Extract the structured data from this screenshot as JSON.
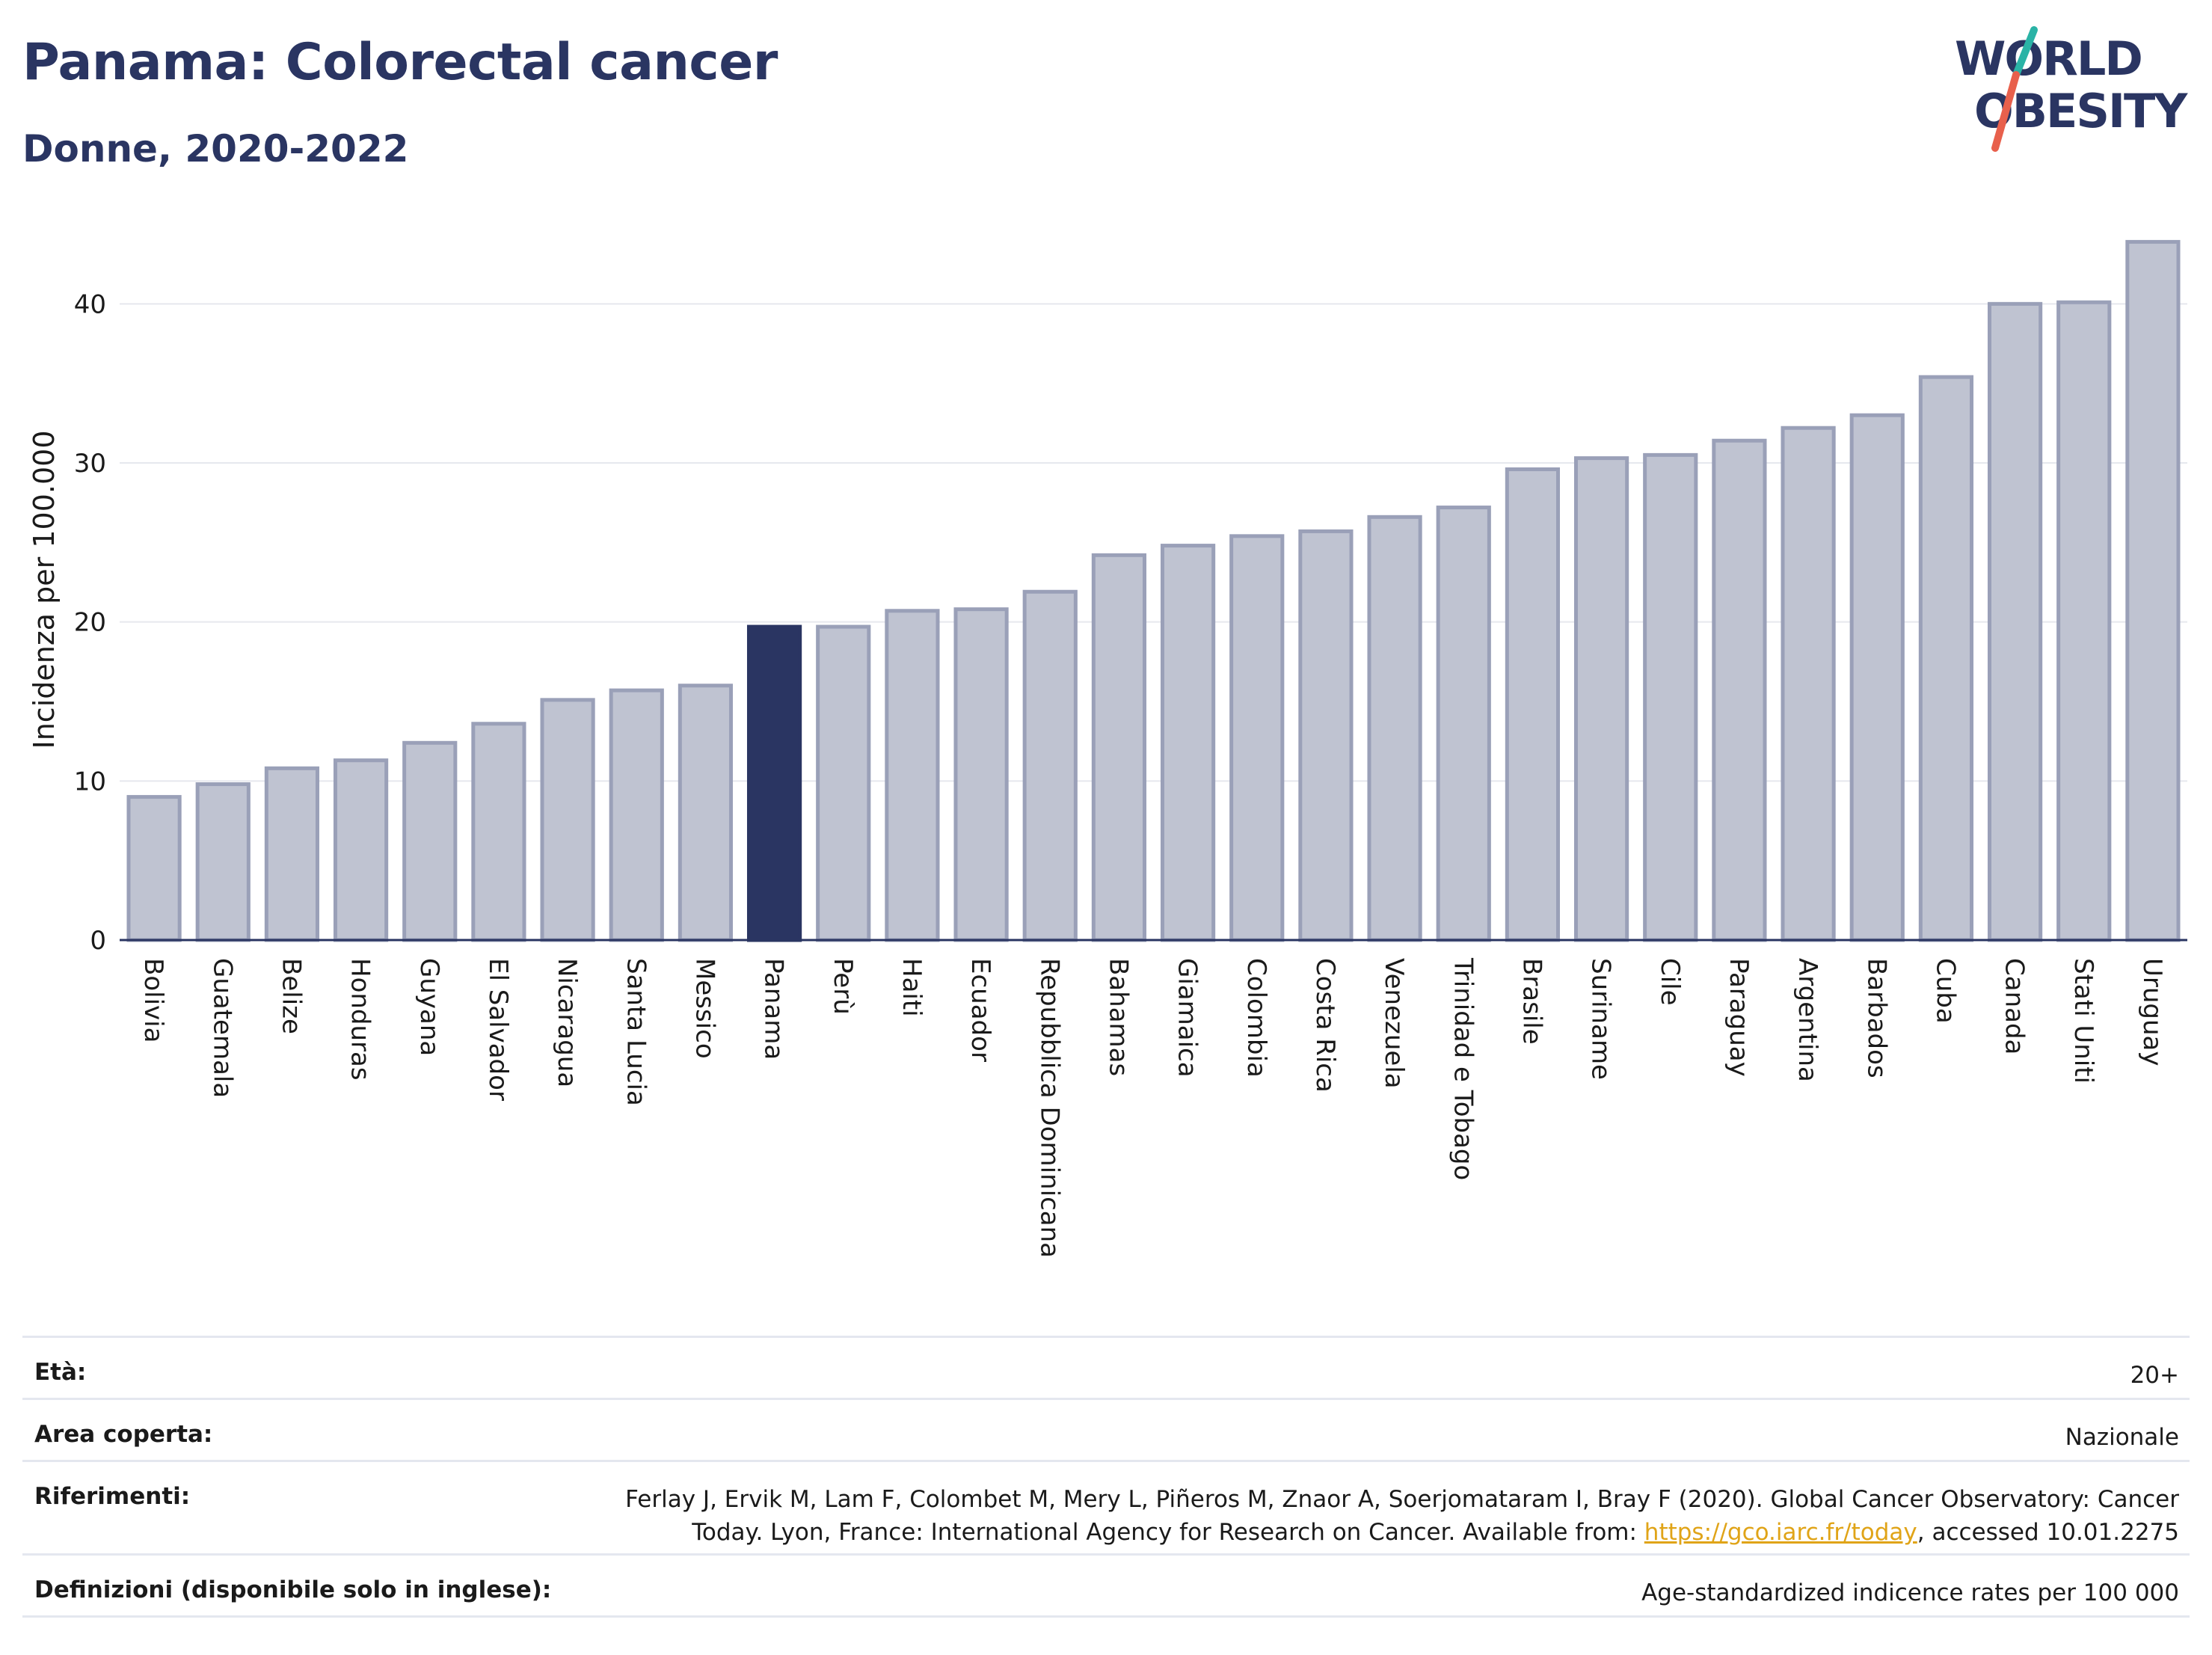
{
  "header": {
    "title": "Panama: Colorectal cancer",
    "subtitle": "Donne, 2020-2022"
  },
  "logo": {
    "line1": "WORLD",
    "line2": "OBESITY",
    "colors": {
      "text": "#2a3562",
      "slash_red": "#e8604c",
      "slash_teal": "#2ab3a6"
    }
  },
  "colors": {
    "bar": "#bfc3d1",
    "bar_border": "#9aa0b8",
    "highlight": "#2a3562",
    "grid": "#e6e8ee",
    "axis": "#2a3562"
  },
  "chart_data": {
    "type": "bar",
    "ylabel": "Incidenza per 100.000",
    "xlabel": "",
    "ylim": [
      0,
      45
    ],
    "yticks": [
      0,
      10,
      20,
      30,
      40
    ],
    "grid": true,
    "highlight": "Panama",
    "categories": [
      "Bolivia",
      "Guatemala",
      "Belize",
      "Honduras",
      "Guyana",
      "El Salvador",
      "Nicaragua",
      "Santa Lucia",
      "Messico",
      "Panama",
      "Perù",
      "Haiti",
      "Ecuador",
      "Repubblica Dominicana",
      "Bahamas",
      "Giamaica",
      "Colombia",
      "Costa Rica",
      "Venezuela",
      "Trinidad e Tobago",
      "Brasile",
      "Suriname",
      "Cile",
      "Paraguay",
      "Argentina",
      "Barbados",
      "Cuba",
      "Canada",
      "Stati Uniti",
      "Uruguay"
    ],
    "values": [
      9.0,
      9.8,
      10.8,
      11.3,
      12.4,
      13.6,
      15.1,
      15.7,
      16.0,
      19.7,
      19.7,
      20.7,
      20.8,
      21.9,
      24.2,
      24.8,
      25.4,
      25.7,
      26.6,
      27.2,
      29.6,
      30.3,
      30.5,
      31.4,
      32.2,
      33.0,
      35.4,
      40.0,
      40.1,
      43.9
    ]
  },
  "info": {
    "eta_label": "Età:",
    "eta_value": "20+",
    "area_label": "Area coperta:",
    "area_value": "Nazionale",
    "ref_label": "Riferimenti:",
    "ref_line1": "Ferlay J, Ervik M, Lam F, Colombet M, Mery L, Piñeros M, Znaor A, Soerjomataram I, Bray F (2020). Global Cancer Observatory: Cancer",
    "ref_line2_pre": "Today. Lyon, France: International Agency for Research on Cancer. Available from: ",
    "ref_link": "https://gco.iarc.fr/today",
    "ref_line2_post": ", accessed 10.01.2275",
    "def_label": "Definizioni (disponibile solo in inglese):",
    "def_value": "Age-standardized indicence rates per 100 000"
  }
}
